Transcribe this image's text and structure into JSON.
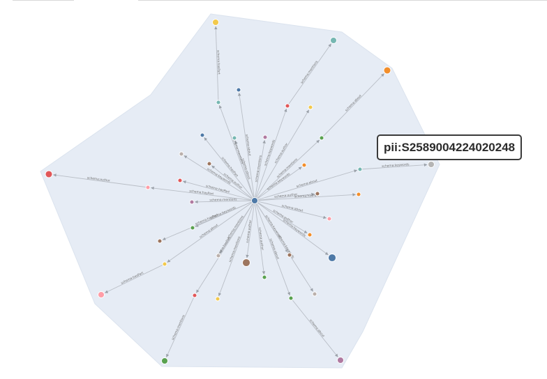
{
  "colors": {
    "hull": "#e6ecf5",
    "hull_stroke": "#dbe3ee",
    "edge": "#b9bec6",
    "center": "#4e79a7"
  },
  "tooltip": {
    "text": "pii:S2589004224020248"
  },
  "center": {
    "color": "#4e79a7"
  },
  "graph": {
    "nodes": [
      {
        "color": "#f2c94c"
      },
      {
        "color": "#76b7b2"
      },
      {
        "color": "#f28e2b"
      },
      {
        "color": "#b5b5b5"
      },
      {
        "color": "#e15759"
      },
      {
        "color": "#ff9da7"
      },
      {
        "color": "#59a14f"
      },
      {
        "color": "#b07aa1"
      },
      {
        "color": "#4e79a7"
      },
      {
        "color": "#9c755f"
      },
      {
        "color": "#ff9da7"
      },
      {
        "color": "#76b7b2"
      },
      {
        "color": "#4e79a7"
      },
      {
        "color": "#e15759"
      },
      {
        "color": "#f2c94c"
      },
      {
        "color": "#4e79a7"
      },
      {
        "color": "#b07aa1"
      },
      {
        "color": "#76b7b2"
      },
      {
        "color": "#bab0ac"
      },
      {
        "color": "#9c755f"
      },
      {
        "color": "#e15759"
      },
      {
        "color": "#59a14f"
      },
      {
        "color": "#76b7b2"
      },
      {
        "color": "#f28e2b"
      },
      {
        "color": "#9c755f"
      },
      {
        "color": "#f28e2b"
      },
      {
        "color": "#b07aa1"
      },
      {
        "color": "#ff9da7"
      },
      {
        "color": "#59a14f"
      },
      {
        "color": "#f28e2b"
      },
      {
        "color": "#9c755f"
      },
      {
        "color": "#bab0ac"
      },
      {
        "color": "#f2c94c"
      },
      {
        "color": "#9c755f"
      },
      {
        "color": "#59a14f"
      },
      {
        "color": "#e15759"
      },
      {
        "color": "#f2c94c"
      },
      {
        "color": "#59a14f"
      },
      {
        "color": "#bab0ac"
      },
      {
        "color": "#ff9da7"
      },
      {
        "color": "#e15759"
      },
      {
        "color": "#ff9da7"
      }
    ]
  }
}
